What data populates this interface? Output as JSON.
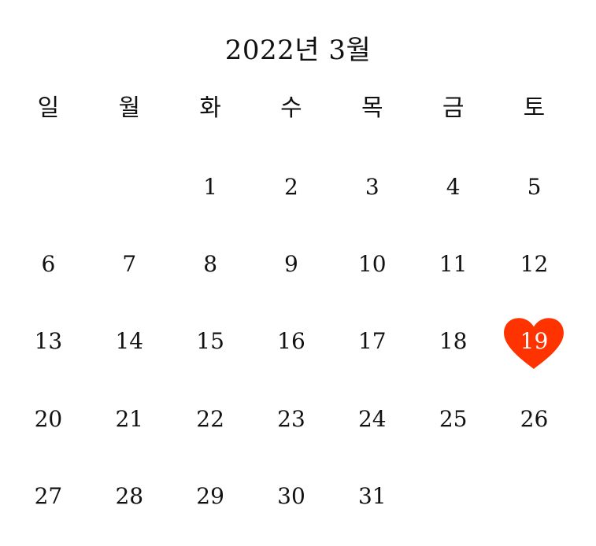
{
  "calendar": {
    "title": "2022년 3월",
    "weekdays": [
      "일",
      "월",
      "화",
      "수",
      "목",
      "금",
      "토"
    ],
    "weeks": [
      [
        "",
        "",
        "1",
        "2",
        "3",
        "4",
        "5"
      ],
      [
        "6",
        "7",
        "8",
        "9",
        "10",
        "11",
        "12"
      ],
      [
        "13",
        "14",
        "15",
        "16",
        "17",
        "18",
        "19"
      ],
      [
        "20",
        "21",
        "22",
        "23",
        "24",
        "25",
        "26"
      ],
      [
        "27",
        "28",
        "29",
        "30",
        "31",
        "",
        ""
      ]
    ],
    "highlighted_day": "19",
    "highlight_icon": "heart-icon",
    "highlight_color": "#ff3300"
  }
}
